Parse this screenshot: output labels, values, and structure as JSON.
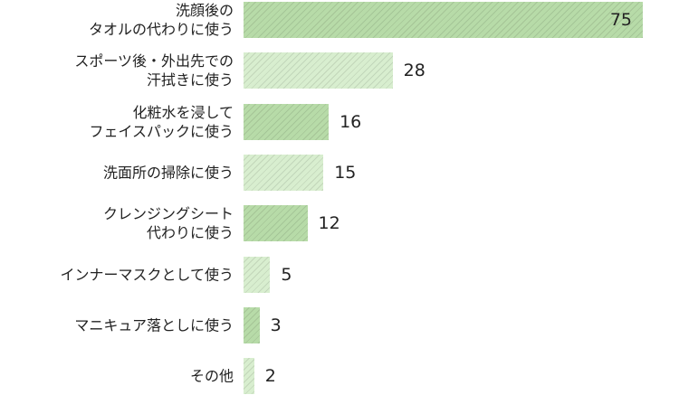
{
  "chart_data": {
    "type": "bar",
    "orientation": "horizontal",
    "categories": [
      "洗顔後の\nタオルの代わりに使う",
      "スポーツ後・外出先での\n汗拭きに使う",
      "化粧水を浸して\nフェイスパックに使う",
      "洗面所の掃除に使う",
      "クレンジングシート\n代わりに使う",
      "インナーマスクとして使う",
      "マニキュア落としに使う",
      "その他"
    ],
    "values": [
      75,
      28,
      16,
      15,
      12,
      5,
      3,
      2
    ],
    "colors": [
      "#b7dba8",
      "#d8eecf"
    ]
  }
}
